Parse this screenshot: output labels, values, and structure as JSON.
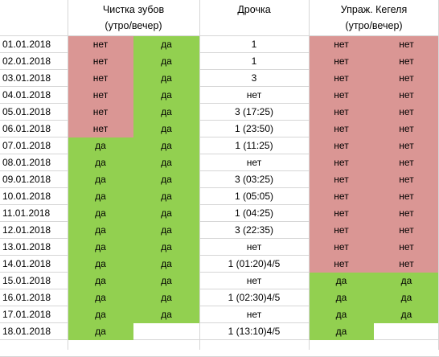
{
  "headers": {
    "teeth_line1": "Чистка зубов",
    "teeth_line2": "(утро/вечер)",
    "drochka": "Дрочка",
    "kegel_line1": "Упраж. Кегеля",
    "kegel_line2": "(утро/вечер)"
  },
  "colors": {
    "no": "#da9694",
    "yes": "#92d050",
    "grid": "#d6d6d6"
  },
  "rows": [
    {
      "date": "01.01.2018",
      "teeth_am": "нет",
      "teeth_pm": "да",
      "drochka": "1",
      "kegel_am": "нет",
      "kegel_pm": "нет"
    },
    {
      "date": "02.01.2018",
      "teeth_am": "нет",
      "teeth_pm": "да",
      "drochka": "1",
      "kegel_am": "нет",
      "kegel_pm": "нет"
    },
    {
      "date": "03.01.2018",
      "teeth_am": "нет",
      "teeth_pm": "да",
      "drochka": "3",
      "kegel_am": "нет",
      "kegel_pm": "нет"
    },
    {
      "date": "04.01.2018",
      "teeth_am": "нет",
      "teeth_pm": "да",
      "drochka": "нет",
      "kegel_am": "нет",
      "kegel_pm": "нет"
    },
    {
      "date": "05.01.2018",
      "teeth_am": "нет",
      "teeth_pm": "да",
      "drochka": "3 (17:25)",
      "kegel_am": "нет",
      "kegel_pm": "нет"
    },
    {
      "date": "06.01.2018",
      "teeth_am": "нет",
      "teeth_pm": "да",
      "drochka": "1 (23:50)",
      "kegel_am": "нет",
      "kegel_pm": "нет"
    },
    {
      "date": "07.01.2018",
      "teeth_am": "да",
      "teeth_pm": "да",
      "drochka": "1 (11:25)",
      "kegel_am": "нет",
      "kegel_pm": "нет"
    },
    {
      "date": "08.01.2018",
      "teeth_am": "да",
      "teeth_pm": "да",
      "drochka": "нет",
      "kegel_am": "нет",
      "kegel_pm": "нет"
    },
    {
      "date": "09.01.2018",
      "teeth_am": "да",
      "teeth_pm": "да",
      "drochka": "3 (03:25)",
      "kegel_am": "нет",
      "kegel_pm": "нет"
    },
    {
      "date": "10.01.2018",
      "teeth_am": "да",
      "teeth_pm": "да",
      "drochka": "1 (05:05)",
      "kegel_am": "нет",
      "kegel_pm": "нет"
    },
    {
      "date": "11.01.2018",
      "teeth_am": "да",
      "teeth_pm": "да",
      "drochka": "1 (04:25)",
      "kegel_am": "нет",
      "kegel_pm": "нет"
    },
    {
      "date": "12.01.2018",
      "teeth_am": "да",
      "teeth_pm": "да",
      "drochka": "3 (22:35)",
      "kegel_am": "нет",
      "kegel_pm": "нет"
    },
    {
      "date": "13.01.2018",
      "teeth_am": "да",
      "teeth_pm": "да",
      "drochka": "нет",
      "kegel_am": "нет",
      "kegel_pm": "нет"
    },
    {
      "date": "14.01.2018",
      "teeth_am": "да",
      "teeth_pm": "да",
      "drochka": "1 (01:20)4/5",
      "kegel_am": "нет",
      "kegel_pm": "нет"
    },
    {
      "date": "15.01.2018",
      "teeth_am": "да",
      "teeth_pm": "да",
      "drochka": "нет",
      "kegel_am": "да",
      "kegel_pm": "да"
    },
    {
      "date": "16.01.2018",
      "teeth_am": "да",
      "teeth_pm": "да",
      "drochka": "1 (02:30)4/5",
      "kegel_am": "да",
      "kegel_pm": "да"
    },
    {
      "date": "17.01.2018",
      "teeth_am": "да",
      "teeth_pm": "да",
      "drochka": "нет",
      "kegel_am": "да",
      "kegel_pm": "да"
    },
    {
      "date": "18.01.2018",
      "teeth_am": "да",
      "teeth_pm": "",
      "drochka": "1 (13:10)4/5",
      "kegel_am": "да",
      "kegel_pm": ""
    }
  ]
}
